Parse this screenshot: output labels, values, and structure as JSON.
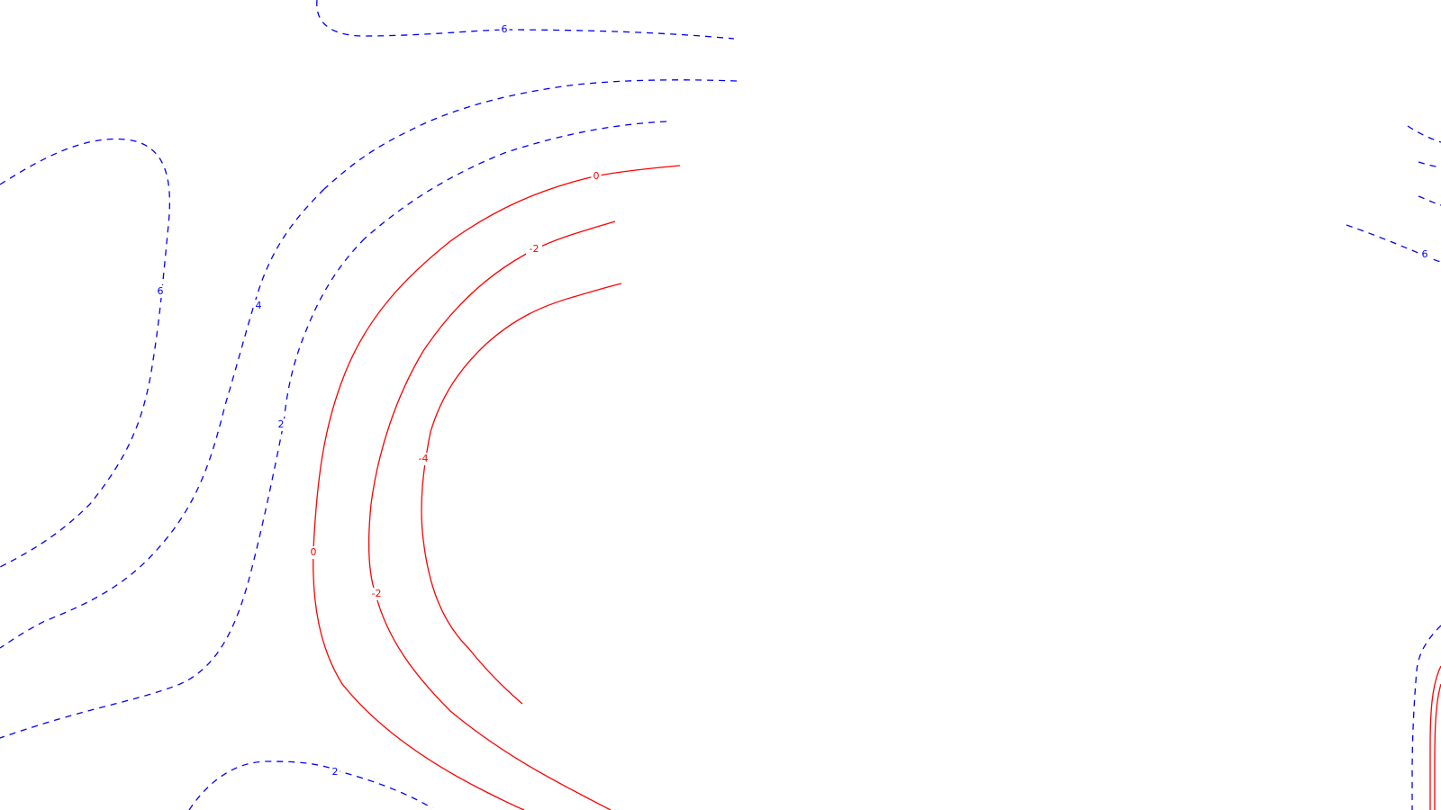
{
  "chart_data": {
    "type": "contour",
    "title": "",
    "xlabel": "",
    "ylabel": "",
    "grid": false,
    "legend": "none",
    "colors": {
      "positive": "#0000ff",
      "negative": "#ff0000"
    },
    "line_styles": {
      "positive": "dashed",
      "negative": "solid"
    },
    "levels": [
      {
        "id": "pos-6-top",
        "level": 6,
        "sign": "positive",
        "label": "6"
      },
      {
        "id": "pos-4-top",
        "level": 4,
        "sign": "positive",
        "label": ""
      },
      {
        "id": "pos-2-top",
        "level": 2,
        "sign": "positive",
        "label": ""
      },
      {
        "id": "pos-6-left",
        "level": 6,
        "sign": "positive",
        "label": "6"
      },
      {
        "id": "pos-4-left",
        "level": 4,
        "sign": "positive",
        "label": "4"
      },
      {
        "id": "pos-2-left",
        "level": 2,
        "sign": "positive",
        "label": "2"
      },
      {
        "id": "pos-2-bottom",
        "level": 2,
        "sign": "positive",
        "label": "2"
      },
      {
        "id": "neg-0",
        "level": 0,
        "sign": "negative",
        "label": "0",
        "label2": "0"
      },
      {
        "id": "neg-2",
        "level": -2,
        "sign": "negative",
        "label": "-2",
        "label2": "-2"
      },
      {
        "id": "neg-4",
        "level": -4,
        "sign": "negative",
        "label": "-4"
      },
      {
        "id": "pos-right-1",
        "level": 6,
        "sign": "positive",
        "label": "6"
      },
      {
        "id": "pos-right-2",
        "level": 4,
        "sign": "positive",
        "label": ""
      },
      {
        "id": "pos-right-3",
        "level": 2,
        "sign": "positive",
        "label": ""
      },
      {
        "id": "pos-right-4",
        "level": 2,
        "sign": "positive",
        "label": ""
      },
      {
        "id": "pos-right-bottom",
        "level": 2,
        "sign": "positive",
        "label": ""
      },
      {
        "id": "neg-right-bottom",
        "level": 0,
        "sign": "negative",
        "label": ""
      }
    ]
  }
}
